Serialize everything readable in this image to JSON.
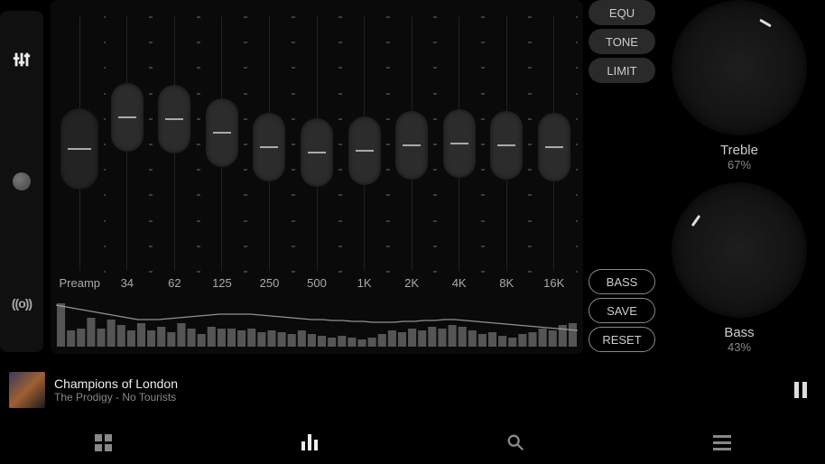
{
  "colors": {
    "background": "#000000",
    "panel": "#0a0a0a",
    "thumb": "#2c2c2c",
    "thumb_line": "#aaaaaa",
    "text_primary": "#eeeeee",
    "text_secondary": "#888888",
    "pill_solid_bg": "#2a2a2a",
    "pill_outline_border": "#888888",
    "dial_bg_inner": "#1e1e1e",
    "dial_bg_outer": "#0c0c0c",
    "dial_mark": "#dddddd",
    "spectrum_bar": "#555555",
    "curve_color": "#aaaaaa"
  },
  "typography": {
    "label_fontsize": 13,
    "knob_label_fontsize": 15,
    "knob_value_fontsize": 13,
    "np_title_fontsize": 14,
    "np_artist_fontsize": 12
  },
  "left_tools": [
    {
      "name": "sliders-icon"
    },
    {
      "name": "knob-icon"
    },
    {
      "name": "fx-icon",
      "label": "((o))"
    }
  ],
  "eq": {
    "type": "equalizer",
    "slider_area_height": 282,
    "bands": [
      {
        "label": "Preamp",
        "value": 0.47,
        "is_preamp": true
      },
      {
        "label": "34",
        "value": 0.64
      },
      {
        "label": "62",
        "value": 0.63
      },
      {
        "label": "125",
        "value": 0.56
      },
      {
        "label": "250",
        "value": 0.48
      },
      {
        "label": "500",
        "value": 0.45
      },
      {
        "label": "1K",
        "value": 0.46
      },
      {
        "label": "2K",
        "value": 0.49
      },
      {
        "label": "4K",
        "value": 0.5
      },
      {
        "label": "8K",
        "value": 0.49
      },
      {
        "label": "16K",
        "value": 0.48
      }
    ],
    "spectrum": {
      "height": 54,
      "bars": [
        48,
        18,
        20,
        32,
        20,
        30,
        24,
        18,
        26,
        18,
        22,
        16,
        26,
        20,
        14,
        22,
        20,
        20,
        18,
        20,
        16,
        18,
        16,
        14,
        18,
        14,
        12,
        10,
        12,
        10,
        8,
        10,
        14,
        18,
        16,
        20,
        18,
        22,
        20,
        24,
        22,
        18,
        14,
        16,
        12,
        10,
        14,
        16,
        20,
        18,
        24,
        26
      ],
      "curve_points": [
        46,
        44,
        42,
        40,
        38,
        36,
        34,
        32,
        30,
        30,
        30,
        31,
        32,
        33,
        34,
        35,
        36,
        36,
        36,
        36,
        35,
        34,
        33,
        32,
        31,
        30,
        30,
        29,
        29,
        28,
        28,
        27,
        27,
        27,
        28,
        28,
        29,
        29,
        30,
        30,
        29,
        28,
        27,
        26,
        25,
        24,
        23,
        22,
        21,
        20,
        19,
        18
      ]
    }
  },
  "buttons_top": [
    {
      "label": "EQU",
      "style": "solid"
    },
    {
      "label": "TONE",
      "style": "solid"
    },
    {
      "label": "LIMIT",
      "style": "solid"
    }
  ],
  "buttons_bottom": [
    {
      "label": "BASS",
      "style": "outline"
    },
    {
      "label": "SAVE",
      "style": "outline"
    },
    {
      "label": "RESET",
      "style": "outline"
    }
  ],
  "knobs": [
    {
      "label": "Treble",
      "value_text": "67%",
      "value": 0.67,
      "angle_deg": 30
    },
    {
      "label": "Bass",
      "value_text": "43%",
      "value": 0.43,
      "angle_deg": -55
    }
  ],
  "now_playing": {
    "title": "Champions of London",
    "artist": "The Prodigy - No Tourists",
    "state": "playing"
  },
  "nav": [
    {
      "name": "library-tab",
      "icon": "grid",
      "active": false
    },
    {
      "name": "equalizer-tab",
      "icon": "eq",
      "active": true
    },
    {
      "name": "search-tab",
      "icon": "search",
      "active": false
    },
    {
      "name": "menu-tab",
      "icon": "burger",
      "active": false
    }
  ]
}
